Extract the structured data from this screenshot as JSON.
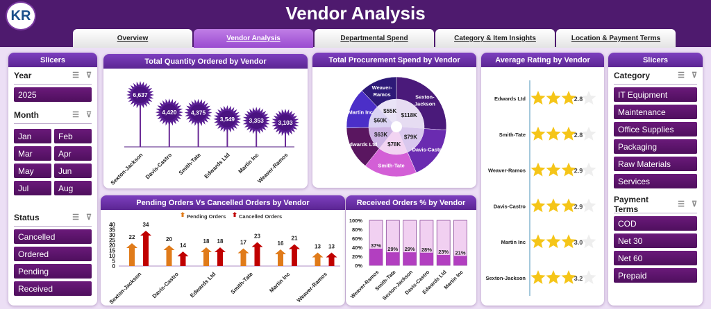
{
  "header": {
    "title": "Vendor Analysis",
    "logo_text": "KR"
  },
  "tabs": [
    {
      "label": "Overview"
    },
    {
      "label": "Vendor Analysis",
      "active": true
    },
    {
      "label": "Departmental Spend"
    },
    {
      "label": "Category & Item Insights"
    },
    {
      "label": "Location & Payment Terms"
    }
  ],
  "left_slicers": {
    "title": "Slicers",
    "year": {
      "label": "Year",
      "items": [
        "2025"
      ]
    },
    "month": {
      "label": "Month",
      "items": [
        "Jan",
        "Feb",
        "Mar",
        "Apr",
        "May",
        "Jun",
        "Jul",
        "Aug"
      ]
    },
    "status": {
      "label": "Status",
      "items": [
        "Cancelled",
        "Ordered",
        "Pending",
        "Received"
      ]
    }
  },
  "right_slicers": {
    "title": "Slicers",
    "category": {
      "label": "Category",
      "items": [
        "IT Equipment",
        "Maintenance",
        "Office Supplies",
        "Packaging",
        "Raw Materials",
        "Services"
      ]
    },
    "payment": {
      "label": "Payment Terms",
      "items": [
        "COD",
        "Net 30",
        "Net 60",
        "Prepaid"
      ]
    }
  },
  "icons": {
    "multiselect": "multi-select-icon",
    "clear_filter": "clear-filter-icon"
  },
  "colors": {
    "header": "#4e1a6e",
    "accent": "#7d3fbf",
    "slicer_button": "#5e1470",
    "pending": "#e07b1a",
    "cancelled": "#c00000",
    "star": "#f5c518"
  },
  "chart_data": [
    {
      "type": "lollipop",
      "title": "Total Quantity Ordered by Vendor",
      "categories": [
        "Sexton-Jackson",
        "Davis-Castro",
        "Smith-Tate",
        "Edwards Ltd",
        "Martin Inc",
        "Weaver-Ramos"
      ],
      "values": [
        6637,
        4420,
        4375,
        3549,
        3353,
        3103
      ],
      "labels": [
        "6,637",
        "4,420",
        "4,375",
        "3,549",
        "3,353",
        "3,103"
      ]
    },
    {
      "type": "pie",
      "title": "Total Procurement Spend by Vendor",
      "categories": [
        "Sexton-Jackson",
        "Davis-Castro",
        "Smith-Tate",
        "Edwards Ltd",
        "Martin Inc",
        "Weaver-Ramos"
      ],
      "values": [
        118,
        79,
        78,
        63,
        60,
        55
      ],
      "labels": [
        "$118K",
        "$79K",
        "$78K",
        "$63K",
        "$60K",
        "$55K"
      ],
      "colors": [
        "#4a1a7a",
        "#6a2bb0",
        "#d35fd6",
        "#5a1660",
        "#4b2fc8",
        "#2e1a78"
      ]
    },
    {
      "type": "bar",
      "title": "Pending Orders Vs Cancelled Orders by Vendor",
      "categories": [
        "Sexton-Jackson",
        "Davis-Castro",
        "Edwards Ltd",
        "Smith-Tate",
        "Martin Inc",
        "Weaver-Ramos"
      ],
      "series": [
        {
          "name": "Pending Orders",
          "values": [
            22,
            20,
            18,
            17,
            16,
            13
          ]
        },
        {
          "name": "Cancelled Orders",
          "values": [
            34,
            14,
            18,
            23,
            21,
            13
          ]
        }
      ],
      "yticks": [
        0,
        5,
        10,
        15,
        20,
        25,
        30,
        35,
        40
      ],
      "ylim": [
        0,
        40
      ],
      "legend": "top"
    },
    {
      "type": "bar",
      "title": "Received Orders % by Vendor",
      "categories": [
        "Weaver-Ramos",
        "Smith-Tate",
        "Sexton-Jackson",
        "Davis-Castro",
        "Edwards Ltd",
        "Martin Inc"
      ],
      "values": [
        37,
        29,
        29,
        28,
        23,
        21
      ],
      "yticks": [
        "0%",
        "20%",
        "40%",
        "60%",
        "80%",
        "100%"
      ],
      "ylim": [
        0,
        100
      ]
    },
    {
      "type": "rating",
      "title": "Average Rating by Vendor",
      "categories": [
        "Edwards Ltd",
        "Smith-Tate",
        "Weaver-Ramos",
        "Davis-Castro",
        "Martin Inc",
        "Sexton-Jackson"
      ],
      "values": [
        "2.8",
        "2.8",
        "2.9",
        "2.9",
        "3.0",
        "3.2"
      ],
      "max": 4
    }
  ]
}
